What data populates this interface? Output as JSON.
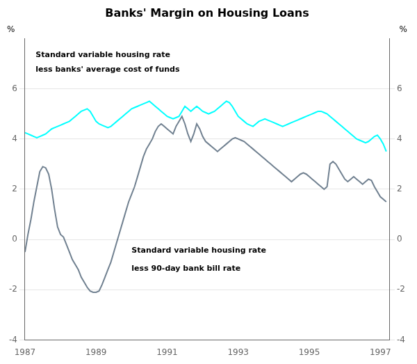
{
  "chart_data": {
    "type": "line",
    "title": "Banks' Margin on Housing Loans",
    "ylabel": "%",
    "y2label": "%",
    "background_color": "#FFFFFF",
    "grid": "y",
    "xlim": [
      1987.0,
      1997.25
    ],
    "xticks": [
      1987,
      1989,
      1991,
      1993,
      1995,
      1997
    ],
    "ylim": [
      -4,
      8
    ],
    "yticks": [
      -4,
      -2,
      0,
      2,
      4,
      6
    ],
    "y2lim": [
      -4,
      8
    ],
    "y2ticks": [
      -4,
      -2,
      0,
      2,
      4,
      6
    ],
    "x": [
      1987.0,
      1987.083,
      1987.167,
      1987.25,
      1987.333,
      1987.417,
      1987.5,
      1987.583,
      1987.667,
      1987.75,
      1987.833,
      1987.917,
      1988.0,
      1988.083,
      1988.167,
      1988.25,
      1988.333,
      1988.417,
      1988.5,
      1988.583,
      1988.667,
      1988.75,
      1988.833,
      1988.917,
      1989.0,
      1989.083,
      1989.167,
      1989.25,
      1989.333,
      1989.417,
      1989.5,
      1989.583,
      1989.667,
      1989.75,
      1989.833,
      1989.917,
      1990.0,
      1990.083,
      1990.167,
      1990.25,
      1990.333,
      1990.417,
      1990.5,
      1990.583,
      1990.667,
      1990.75,
      1990.833,
      1990.917,
      1991.0,
      1991.083,
      1991.167,
      1991.25,
      1991.333,
      1991.417,
      1991.5,
      1991.583,
      1991.667,
      1991.75,
      1991.833,
      1991.917,
      1992.0,
      1992.083,
      1992.167,
      1992.25,
      1992.333,
      1992.417,
      1992.5,
      1992.583,
      1992.667,
      1992.75,
      1992.833,
      1992.917,
      1993.0,
      1993.083,
      1993.167,
      1993.25,
      1993.333,
      1993.417,
      1993.5,
      1993.583,
      1993.667,
      1993.75,
      1993.833,
      1993.917,
      1994.0,
      1994.083,
      1994.167,
      1994.25,
      1994.333,
      1994.417,
      1994.5,
      1994.583,
      1994.667,
      1994.75,
      1994.833,
      1994.917,
      1995.0,
      1995.083,
      1995.167,
      1995.25,
      1995.333,
      1995.417,
      1995.5,
      1995.583,
      1995.667,
      1995.75,
      1995.833,
      1995.917,
      1996.0,
      1996.083,
      1996.167,
      1996.25,
      1996.333,
      1996.417,
      1996.5,
      1996.583,
      1996.667,
      1996.75,
      1996.833,
      1996.917,
      1997.0,
      1997.083,
      1997.167
    ],
    "series": [
      {
        "color": "#00FFFF",
        "values": [
          4.25,
          4.2,
          4.15,
          4.1,
          4.05,
          4.1,
          4.15,
          4.2,
          4.3,
          4.4,
          4.45,
          4.5,
          4.55,
          4.6,
          4.65,
          4.7,
          4.8,
          4.9,
          5.0,
          5.1,
          5.15,
          5.2,
          5.1,
          4.9,
          4.7,
          4.6,
          4.55,
          4.5,
          4.45,
          4.5,
          4.6,
          4.7,
          4.8,
          4.9,
          5.0,
          5.1,
          5.2,
          5.25,
          5.3,
          5.35,
          5.4,
          5.45,
          5.5,
          5.4,
          5.3,
          5.2,
          5.1,
          5.0,
          4.9,
          4.85,
          4.8,
          4.85,
          4.9,
          5.1,
          5.3,
          5.2,
          5.1,
          5.2,
          5.3,
          5.2,
          5.1,
          5.05,
          5.0,
          5.05,
          5.1,
          5.2,
          5.3,
          5.4,
          5.5,
          5.45,
          5.3,
          5.1,
          4.9,
          4.8,
          4.7,
          4.6,
          4.55,
          4.5,
          4.6,
          4.7,
          4.75,
          4.8,
          4.75,
          4.7,
          4.65,
          4.6,
          4.55,
          4.5,
          4.55,
          4.6,
          4.65,
          4.7,
          4.75,
          4.8,
          4.85,
          4.9,
          4.95,
          5.0,
          5.05,
          5.1,
          5.1,
          5.05,
          5.0,
          4.9,
          4.8,
          4.7,
          4.6,
          4.5,
          4.4,
          4.3,
          4.2,
          4.1,
          4.0,
          3.95,
          3.9,
          3.85,
          3.9,
          4.0,
          4.1,
          4.15,
          4.0,
          3.8,
          3.5
        ]
      },
      {
        "color": "#708090",
        "values": [
          -0.5,
          0.2,
          0.8,
          1.5,
          2.1,
          2.7,
          2.9,
          2.85,
          2.6,
          2.0,
          1.2,
          0.5,
          0.2,
          0.1,
          -0.2,
          -0.5,
          -0.8,
          -1.0,
          -1.2,
          -1.5,
          -1.7,
          -1.9,
          -2.05,
          -2.1,
          -2.1,
          -2.05,
          -1.8,
          -1.5,
          -1.2,
          -0.9,
          -0.5,
          -0.1,
          0.3,
          0.7,
          1.1,
          1.5,
          1.8,
          2.1,
          2.5,
          2.9,
          3.3,
          3.6,
          3.8,
          4.0,
          4.3,
          4.5,
          4.6,
          4.5,
          4.4,
          4.3,
          4.2,
          4.5,
          4.7,
          4.9,
          4.6,
          4.2,
          3.9,
          4.2,
          4.6,
          4.4,
          4.1,
          3.9,
          3.8,
          3.7,
          3.6,
          3.5,
          3.6,
          3.7,
          3.8,
          3.9,
          4.0,
          4.05,
          4.0,
          3.95,
          3.9,
          3.8,
          3.7,
          3.6,
          3.5,
          3.4,
          3.3,
          3.2,
          3.1,
          3.0,
          2.9,
          2.8,
          2.7,
          2.6,
          2.5,
          2.4,
          2.3,
          2.4,
          2.5,
          2.6,
          2.65,
          2.6,
          2.5,
          2.4,
          2.3,
          2.2,
          2.1,
          2.0,
          2.1,
          3.0,
          3.1,
          3.0,
          2.8,
          2.6,
          2.4,
          2.3,
          2.4,
          2.5,
          2.4,
          2.3,
          2.2,
          2.3,
          2.4,
          2.35,
          2.1,
          1.9,
          1.7,
          1.6,
          1.5
        ]
      }
    ],
    "annotations": [
      {
        "text": "Standard variable housing rate",
        "x": 1987.3,
        "y": 7.5
      },
      {
        "text": "less banks' average cost of funds",
        "x": 1987.3,
        "y": 6.9
      },
      {
        "text": "Standard variable housing rate",
        "x": 1990.0,
        "y": -0.3
      },
      {
        "text": "less 90-day bank bill rate",
        "x": 1990.0,
        "y": -1.0
      }
    ]
  }
}
